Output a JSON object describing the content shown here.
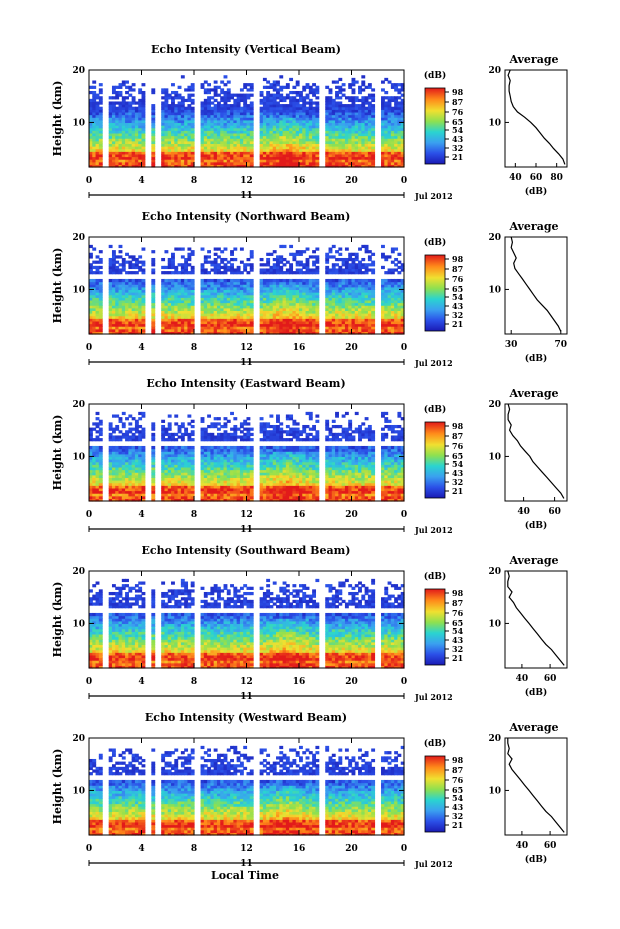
{
  "figure": {
    "xlabel": "Local Time",
    "date_label": "Jul 2012",
    "day_label": "11",
    "ylabel": "Height (km)",
    "colorbar_unit": "(dB)",
    "avg_title": "Average",
    "avg_xlabel": "(dB)"
  },
  "chart_data": [
    {
      "type": "heatmap",
      "title": "Echo Intensity (Vertical Beam)",
      "x_ticks": [
        "0",
        "4",
        "8",
        "12",
        "16",
        "20",
        "0"
      ],
      "y_ticks": [
        "20",
        "10"
      ],
      "xlim": [
        0,
        24
      ],
      "ylim": [
        1.5,
        20
      ],
      "colorbar_ticks": [
        "98",
        "87",
        "76",
        "65",
        "54",
        "43",
        "32",
        "21"
      ],
      "colorbar_range": [
        21,
        98
      ],
      "average_profile": {
        "x_ticks": [
          "40",
          "60",
          "80"
        ],
        "xlim": [
          30,
          90
        ],
        "y_ticks": [
          "20",
          "10"
        ],
        "heights": [
          2,
          3,
          4,
          5,
          6,
          7,
          8,
          9,
          10,
          11,
          12,
          13,
          14,
          15,
          16,
          17,
          18,
          19,
          20
        ],
        "values": [
          88,
          86,
          82,
          77,
          73,
          68,
          64,
          60,
          55,
          49,
          42,
          38,
          36,
          35,
          34,
          34,
          35,
          33,
          35
        ]
      }
    },
    {
      "type": "heatmap",
      "title": "Echo Intensity (Northward Beam)",
      "x_ticks": [
        "0",
        "4",
        "8",
        "12",
        "16",
        "20",
        "0"
      ],
      "y_ticks": [
        "20",
        "10"
      ],
      "xlim": [
        0,
        24
      ],
      "ylim": [
        1.5,
        20
      ],
      "colorbar_ticks": [
        "98",
        "87",
        "76",
        "65",
        "54",
        "43",
        "32",
        "21"
      ],
      "colorbar_range": [
        21,
        98
      ],
      "average_profile": {
        "x_ticks": [
          "30",
          "70"
        ],
        "xlim": [
          25,
          75
        ],
        "y_ticks": [
          "20",
          "10"
        ],
        "heights": [
          2,
          3,
          4,
          5,
          6,
          7,
          8,
          9,
          10,
          11,
          12,
          13,
          14,
          15,
          16,
          17,
          18,
          19,
          20
        ],
        "values": [
          70,
          68,
          65,
          62,
          59,
          55,
          51,
          48,
          45,
          42,
          39,
          36,
          33,
          32,
          34,
          32,
          30,
          31,
          30
        ]
      }
    },
    {
      "type": "heatmap",
      "title": "Echo Intensity (Eastward Beam)",
      "x_ticks": [
        "0",
        "4",
        "8",
        "12",
        "16",
        "20",
        "0"
      ],
      "y_ticks": [
        "20",
        "10"
      ],
      "xlim": [
        0,
        24
      ],
      "ylim": [
        1.5,
        20
      ],
      "colorbar_ticks": [
        "98",
        "87",
        "76",
        "65",
        "54",
        "43",
        "32",
        "21"
      ],
      "colorbar_range": [
        21,
        98
      ],
      "average_profile": {
        "x_ticks": [
          "40",
          "60"
        ],
        "xlim": [
          28,
          68
        ],
        "y_ticks": [
          "20",
          "10"
        ],
        "heights": [
          2,
          3,
          4,
          5,
          6,
          7,
          8,
          9,
          10,
          11,
          12,
          13,
          14,
          15,
          16,
          17,
          18,
          19,
          20
        ],
        "values": [
          66,
          64,
          61,
          58,
          55,
          52,
          49,
          46,
          44,
          41,
          38,
          36,
          33,
          31,
          32,
          30,
          30,
          31,
          30
        ]
      }
    },
    {
      "type": "heatmap",
      "title": "Echo Intensity (Southward Beam)",
      "x_ticks": [
        "0",
        "4",
        "8",
        "12",
        "16",
        "20",
        "0"
      ],
      "y_ticks": [
        "20",
        "10"
      ],
      "xlim": [
        0,
        24
      ],
      "ylim": [
        1.5,
        20
      ],
      "colorbar_ticks": [
        "98",
        "87",
        "76",
        "65",
        "54",
        "43",
        "32",
        "21"
      ],
      "colorbar_range": [
        21,
        98
      ],
      "average_profile": {
        "x_ticks": [
          "40",
          "60"
        ],
        "xlim": [
          28,
          72
        ],
        "y_ticks": [
          "20",
          "10"
        ],
        "heights": [
          2,
          3,
          4,
          5,
          6,
          7,
          8,
          9,
          10,
          11,
          12,
          13,
          14,
          15,
          16,
          17,
          18,
          19,
          20
        ],
        "values": [
          70,
          67,
          64,
          61,
          57,
          54,
          51,
          48,
          45,
          42,
          39,
          36,
          34,
          31,
          33,
          30,
          30,
          31,
          30
        ]
      }
    },
    {
      "type": "heatmap",
      "title": "Echo Intensity (Westward Beam)",
      "x_ticks": [
        "0",
        "4",
        "8",
        "12",
        "16",
        "20",
        "0"
      ],
      "y_ticks": [
        "20",
        "10"
      ],
      "xlim": [
        0,
        24
      ],
      "ylim": [
        1.5,
        20
      ],
      "colorbar_ticks": [
        "98",
        "87",
        "76",
        "65",
        "54",
        "43",
        "32",
        "21"
      ],
      "colorbar_range": [
        21,
        98
      ],
      "average_profile": {
        "x_ticks": [
          "40",
          "60"
        ],
        "xlim": [
          28,
          72
        ],
        "y_ticks": [
          "20",
          "10"
        ],
        "heights": [
          2,
          3,
          4,
          5,
          6,
          7,
          8,
          9,
          10,
          11,
          12,
          13,
          14,
          15,
          16,
          17,
          18,
          19,
          20
        ],
        "values": [
          70,
          67,
          64,
          61,
          57,
          54,
          51,
          48,
          45,
          42,
          39,
          36,
          33,
          31,
          33,
          30,
          31,
          30,
          30
        ]
      }
    }
  ]
}
